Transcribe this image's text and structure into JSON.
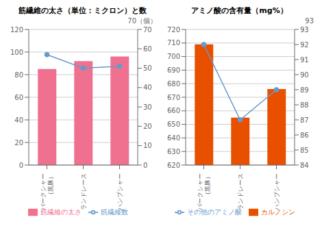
{
  "chart_data": [
    {
      "type": "bar",
      "title": "筋繊維の太さ（単位：ミクロン）と数",
      "categories": [
        "バークシャー\n（黒豚）",
        "ランドレース",
        "ハンプシャー"
      ],
      "series": [
        {
          "name": "筋繊維の太さ",
          "type": "bar",
          "color": "#f07090",
          "values": [
            85,
            92,
            96
          ]
        },
        {
          "name": "筋繊維数",
          "type": "line",
          "axis": "y2",
          "color": "#6699cc",
          "marker": "circle",
          "values": [
            57,
            50,
            51
          ]
        }
      ],
      "y2label": "70（個）",
      "ylim": [
        0,
        120
      ],
      "yticks": [
        0,
        20,
        40,
        60,
        80,
        100,
        120
      ],
      "y2lim": [
        0,
        70
      ],
      "y2ticks": [
        0,
        10,
        20,
        30,
        40,
        50,
        60,
        70
      ],
      "grid": true,
      "legend": "bottom"
    },
    {
      "type": "bar",
      "title": "アミノ酸の含有量（mg%）",
      "categories": [
        "バークシャー\n（黒豚）",
        "ランドレース",
        "ハンプシャー"
      ],
      "series": [
        {
          "name": "カルノシン",
          "type": "bar",
          "color": "#e85000",
          "values": [
            709,
            655,
            676
          ]
        },
        {
          "name": "その他のアミノ酸",
          "type": "line",
          "axis": "y2",
          "color": "#6699cc",
          "marker": "circle",
          "values": [
            92,
            87,
            89
          ]
        }
      ],
      "y2label": "93",
      "ylim": [
        620,
        720
      ],
      "yticks": [
        620,
        630,
        640,
        650,
        660,
        670,
        680,
        690,
        700,
        710,
        720
      ],
      "y2lim": [
        84,
        93
      ],
      "y2ticks": [
        84,
        85,
        86,
        87,
        88,
        89,
        90,
        91,
        92,
        93
      ],
      "grid": true,
      "legend": "bottom"
    }
  ]
}
